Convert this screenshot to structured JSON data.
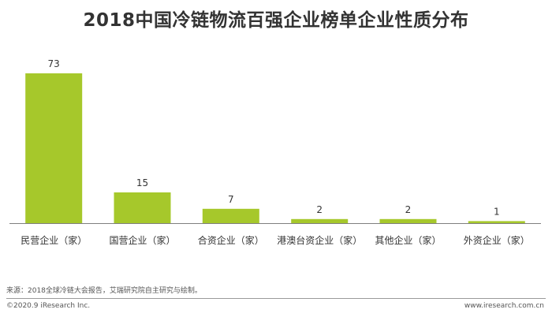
{
  "header": {
    "title": "2018中国冷链物流百强企业榜单企业性质分布"
  },
  "chart_data": {
    "type": "bar",
    "title": "2018中国冷链物流百强企业榜单企业性质分布",
    "categories": [
      "民营企业（家）",
      "国营企业（家）",
      "合资企业（家）",
      "港澳台资企业（家）",
      "其他企业（家）",
      "外资企业（家）"
    ],
    "values": [
      73,
      15,
      7,
      2,
      2,
      1
    ],
    "ylim": [
      0,
      73
    ],
    "grid": false,
    "bar_color": "#a6c82b",
    "axis_color": "#7f7f7f"
  },
  "footer": {
    "source": "来源：2018全球冷链大会报告，艾瑞研究院自主研究与绘制。",
    "copyright": "©2020.9 iResearch Inc.",
    "site": "www.iresearch.com.cn"
  }
}
